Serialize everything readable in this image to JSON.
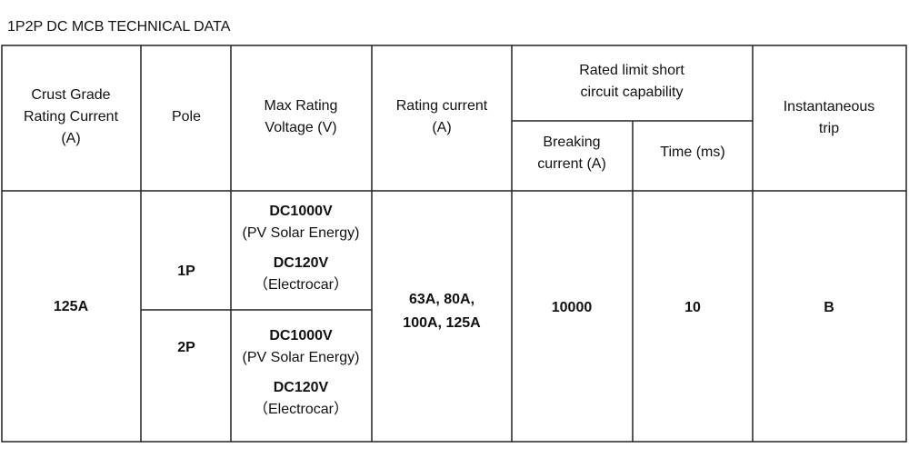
{
  "title": "1P2P DC MCB TECHNICAL DATA",
  "table": {
    "header": [
      {
        "lines": [
          "Crust Grade",
          "Rating Current",
          "(A)"
        ]
      },
      {
        "lines": [
          "Pole"
        ]
      },
      {
        "lines": [
          "Max Rating",
          "Voltage (V)"
        ]
      },
      {
        "lines": [
          "Rating current",
          "(A)"
        ]
      },
      {
        "lines": [
          "Rated limit short",
          "circuit capability"
        ]
      },
      {
        "lines": [
          "Instantaneous",
          "trip"
        ]
      }
    ],
    "subheader": [
      {
        "lines": [
          "Breaking",
          "current (A)"
        ]
      },
      {
        "lines": [
          "Time (ms)"
        ]
      }
    ],
    "body": {
      "crust_grade": "125A",
      "poles": [
        {
          "pole": "1P",
          "voltages": [
            {
              "voltage": "DC1000V",
              "use": "(PV Solar Energy)"
            },
            {
              "voltage": "DC120V",
              "use": "（Electrocar）"
            }
          ]
        },
        {
          "pole": "2P",
          "voltages": [
            {
              "voltage": "DC1000V",
              "use": "(PV Solar Energy)"
            },
            {
              "voltage": "DC120V",
              "use": "（Electrocar）"
            }
          ]
        }
      ],
      "rating_current": {
        "lines": [
          "63A, 80A,",
          "100A, 125A"
        ]
      },
      "breaking_current": "10000",
      "time": "10",
      "trip": "B"
    }
  }
}
